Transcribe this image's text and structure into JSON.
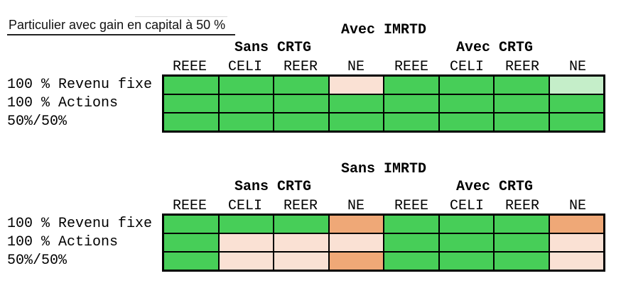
{
  "page_title": "Particulier avec gain en capital à 50 %",
  "colors": {
    "green": "#47CE58",
    "light_green": "#C5EEC9",
    "light_pink": "#FAE1D4",
    "orange": "#EFA877",
    "border": "#000000",
    "background": "#FFFFFF"
  },
  "chart_data": [
    {
      "type": "heatmap",
      "title": "Avec IMRTD",
      "column_groups": [
        {
          "label": "Sans CRTG",
          "columns": [
            "REEE",
            "CELI",
            "REER",
            "NE"
          ]
        },
        {
          "label": "Avec CRTG",
          "columns": [
            "REEE",
            "CELI",
            "REER",
            "NE"
          ]
        }
      ],
      "row_labels": [
        "100 % Revenu fixe",
        "100 % Actions",
        "50%/50%"
      ],
      "cell_colors": [
        [
          "green",
          "green",
          "green",
          "light_pink",
          "green",
          "green",
          "green",
          "light_green"
        ],
        [
          "green",
          "green",
          "green",
          "green",
          "green",
          "green",
          "green",
          "green"
        ],
        [
          "green",
          "green",
          "green",
          "green",
          "green",
          "green",
          "green",
          "green"
        ]
      ],
      "legend_position": "none",
      "grid": "on"
    },
    {
      "type": "heatmap",
      "title": "Sans IMRTD",
      "column_groups": [
        {
          "label": "Sans CRTG",
          "columns": [
            "REEE",
            "CELI",
            "REER",
            "NE"
          ]
        },
        {
          "label": "Avec CRTG",
          "columns": [
            "REEE",
            "CELI",
            "REER",
            "NE"
          ]
        }
      ],
      "row_labels": [
        "100 % Revenu fixe",
        "100 % Actions",
        "50%/50%"
      ],
      "cell_colors": [
        [
          "green",
          "green",
          "green",
          "orange",
          "green",
          "green",
          "green",
          "orange"
        ],
        [
          "green",
          "light_pink",
          "light_pink",
          "light_pink",
          "green",
          "green",
          "green",
          "light_pink"
        ],
        [
          "green",
          "light_pink",
          "light_pink",
          "orange",
          "green",
          "green",
          "green",
          "light_pink"
        ]
      ],
      "legend_position": "none",
      "grid": "on"
    }
  ]
}
